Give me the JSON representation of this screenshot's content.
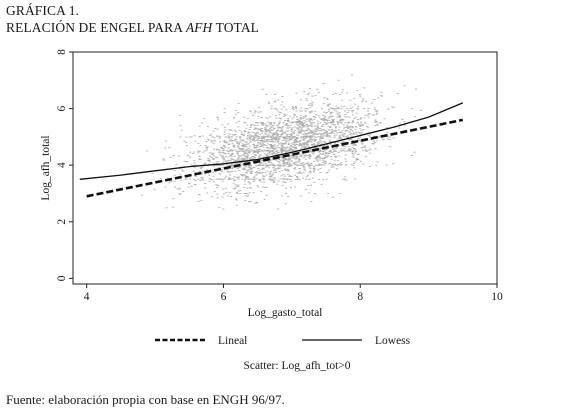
{
  "figure_label": "GRÁFICA 1.",
  "figure_title": {
    "prefix": "RELACIÓN DE ENGEL PARA",
    "emphasis": "AFH",
    "suffix": "TOTAL"
  },
  "source_note": "Fuente: elaboración propia con base en ENGH 96/97.",
  "chart_data": {
    "type": "scatter",
    "xlabel": "Log_gasto_total",
    "ylabel": "Log_afh_total",
    "xlim": [
      3.8,
      10
    ],
    "ylim": [
      -0.2,
      8
    ],
    "x_ticks": [
      4,
      6,
      8,
      10
    ],
    "y_ticks": [
      0,
      2,
      4,
      6,
      8
    ],
    "grid": false,
    "legend_position": "bottom",
    "scatter_label": "Scatter: Log_afh_tot>0",
    "scatter_color": "#a8a8a8",
    "series": [
      {
        "name": "Lineal",
        "style": "dashed",
        "color": "#111111",
        "x": [
          4.0,
          9.5
        ],
        "y": [
          2.9,
          5.6
        ]
      },
      {
        "name": "Lowess",
        "style": "solid",
        "color": "#111111",
        "x": [
          3.9,
          4.5,
          5.0,
          5.5,
          6.0,
          6.5,
          7.0,
          7.5,
          8.0,
          8.5,
          9.0,
          9.5
        ],
        "y": [
          3.5,
          3.65,
          3.8,
          3.95,
          4.05,
          4.2,
          4.45,
          4.75,
          5.05,
          5.35,
          5.7,
          6.2
        ]
      }
    ]
  }
}
